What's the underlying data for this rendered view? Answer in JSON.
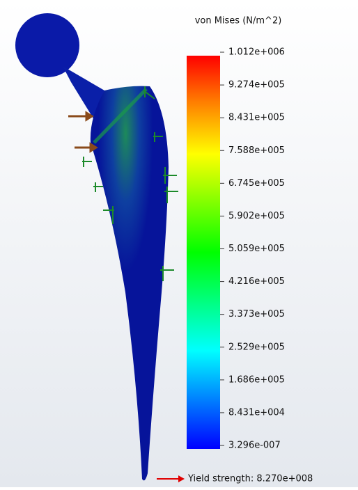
{
  "legend": {
    "title": "von Mises (N/m^2)",
    "labels": [
      "1.012e+006",
      "9.274e+005",
      "8.431e+005",
      "7.588e+005",
      "6.745e+005",
      "5.902e+005",
      "5.059e+005",
      "4.216e+005",
      "3.373e+005",
      "2.529e+005",
      "1.686e+005",
      "8.431e+004",
      "3.296e-007"
    ]
  },
  "yield_label": "Yield strength: 8.270e+008"
}
